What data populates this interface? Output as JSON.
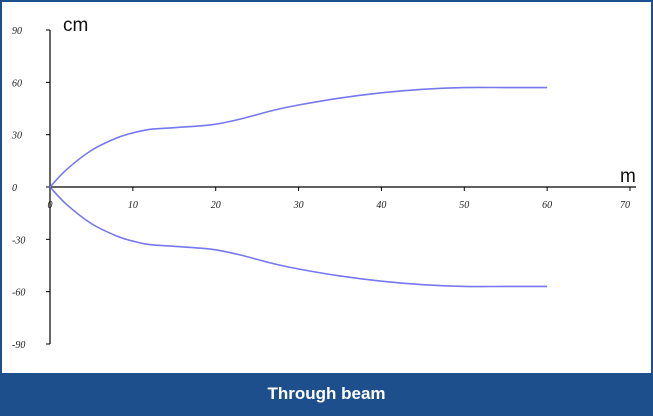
{
  "chart_data": {
    "type": "line",
    "title": "",
    "xlabel": "m",
    "ylabel": "cm",
    "xlim": [
      0,
      70
    ],
    "ylim": [
      -90,
      90
    ],
    "x_ticks": [
      "0",
      "10",
      "20",
      "30",
      "40",
      "50",
      "60",
      "70"
    ],
    "y_ticks": [
      "90",
      "60",
      "30",
      "0",
      "-30",
      "-60",
      "-90"
    ],
    "grid": false,
    "legend": "none",
    "line_color": "#7777ee",
    "series": [
      {
        "x": [
          0,
          2,
          5,
          8,
          10,
          12,
          15,
          18,
          20,
          23,
          27,
          30,
          35,
          40,
          45,
          50,
          55,
          60
        ],
        "values": [
          0,
          10,
          21,
          28,
          31,
          33,
          34,
          35,
          36,
          39,
          44,
          47,
          51,
          54,
          56,
          57,
          57,
          57
        ]
      },
      {
        "x": [
          0,
          2,
          5,
          8,
          10,
          12,
          15,
          18,
          20,
          23,
          27,
          30,
          35,
          40,
          45,
          50,
          55,
          60
        ],
        "values": [
          0,
          -10,
          -21,
          -28,
          -31,
          -33,
          -34,
          -35,
          -36,
          -39,
          -44,
          -47,
          -51,
          -54,
          -56,
          -57,
          -57,
          -57
        ]
      }
    ]
  },
  "caption": "Through beam"
}
